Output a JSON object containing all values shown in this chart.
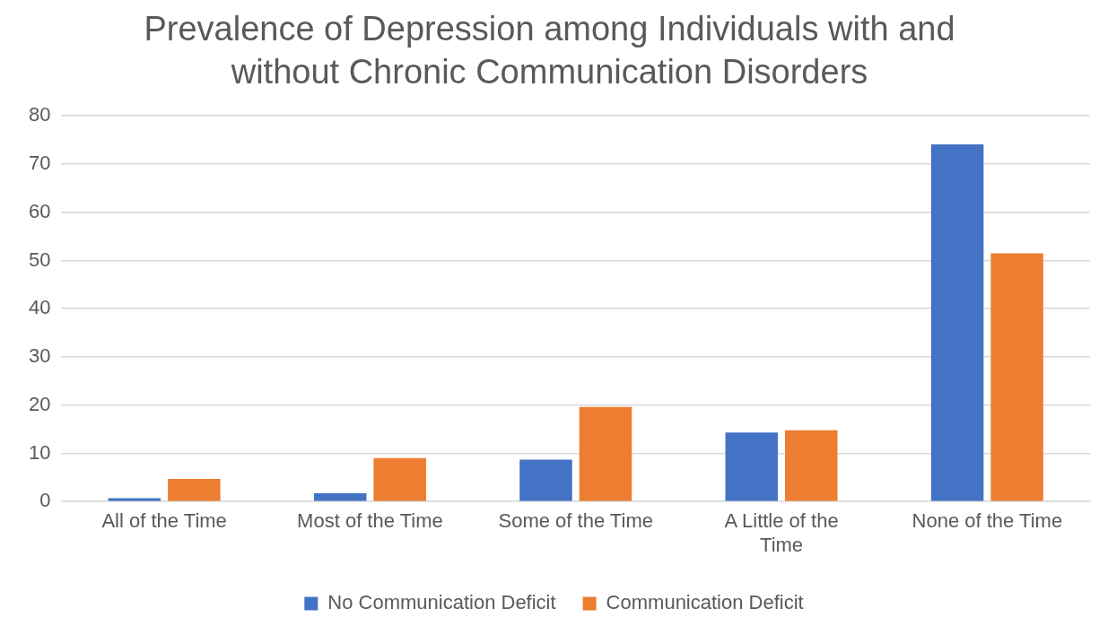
{
  "chart_data": {
    "type": "bar",
    "title": "Prevalence of Depression among Individuals with and without Chronic Communication Disorders",
    "categories": [
      "All of the Time",
      "Most of the Time",
      "Some of the Time",
      "A Little of the Time",
      "None of the Time"
    ],
    "series": [
      {
        "name": "No Communication Deficit",
        "color": "#4472c4",
        "values": [
          0.7,
          1.7,
          8.7,
          14.3,
          74.1
        ]
      },
      {
        "name": "Communication Deficit",
        "color": "#ed7d31",
        "values": [
          4.7,
          9.0,
          19.6,
          14.8,
          51.5
        ]
      }
    ],
    "ylim": [
      0,
      80
    ],
    "yticks": [
      0,
      10,
      20,
      30,
      40,
      50,
      60,
      70,
      80
    ],
    "grid": "y",
    "legend": "bottom"
  }
}
